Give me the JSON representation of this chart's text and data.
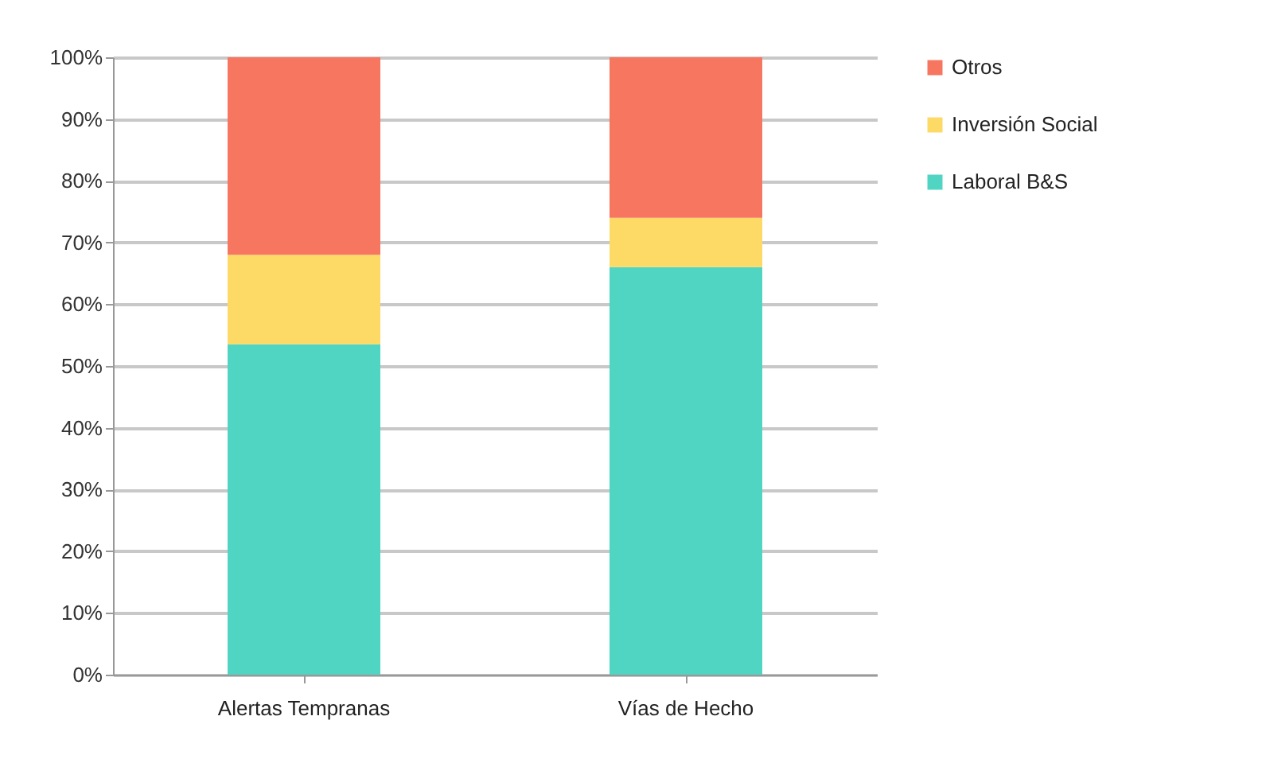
{
  "chart_data": {
    "type": "bar",
    "stacked": true,
    "categories": [
      "Alertas Tempranas",
      "Vías de Hecho"
    ],
    "series": [
      {
        "name": "Laboral B&S",
        "color": "#4fd5c2",
        "values": [
          53.5,
          66
        ]
      },
      {
        "name": "Inversión Social",
        "color": "#fdd966",
        "values": [
          14.5,
          8
        ]
      },
      {
        "name": "Otros",
        "color": "#f7765f",
        "values": [
          32,
          26
        ]
      }
    ],
    "ylim": [
      0,
      100
    ],
    "yticks": [
      {
        "value": 0,
        "label": "0%"
      },
      {
        "value": 10,
        "label": "10%"
      },
      {
        "value": 20,
        "label": "20%"
      },
      {
        "value": 30,
        "label": "30%"
      },
      {
        "value": 40,
        "label": "40%"
      },
      {
        "value": 50,
        "label": "50%"
      },
      {
        "value": 60,
        "label": "60%"
      },
      {
        "value": 70,
        "label": "70%"
      },
      {
        "value": 80,
        "label": "80%"
      },
      {
        "value": 90,
        "label": "90%"
      },
      {
        "value": 100,
        "label": "100%"
      }
    ],
    "grid": "y",
    "legend": "right"
  }
}
